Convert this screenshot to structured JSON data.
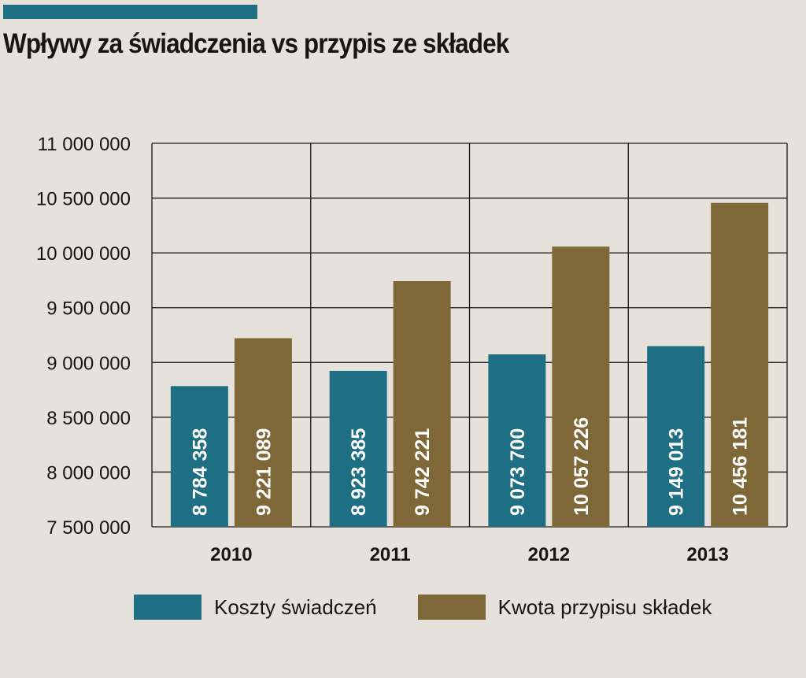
{
  "colors": {
    "accent": "#1e6f84",
    "series_1": "#1e6f84",
    "series_2": "#7f6838",
    "grid": "#1a1510",
    "background": "#e7e1db"
  },
  "chart_data": {
    "type": "bar",
    "title": "Wpływy za świadczenia vs przypis ze składek",
    "xlabel": "",
    "ylabel": "",
    "categories": [
      "2010",
      "2011",
      "2012",
      "2013"
    ],
    "series": [
      {
        "name": "Koszty świadczeń",
        "values": [
          8784358,
          8923385,
          9073700,
          9149013
        ],
        "labels": [
          "8 784 358",
          "8 923 385",
          "9 073 700",
          "9 149 013"
        ]
      },
      {
        "name": "Kwota przypisu składek",
        "values": [
          9221089,
          9742221,
          10057226,
          10456181
        ],
        "labels": [
          "9 221 089",
          "9 742 221",
          "10 057 226",
          "10 456 181"
        ]
      }
    ],
    "ylim": [
      7500000,
      11000000
    ],
    "yticks": [
      7500000,
      8000000,
      8500000,
      9000000,
      9500000,
      10000000,
      10500000,
      11000000
    ],
    "ytick_labels": [
      "7 500 000",
      "8 000 000",
      "8 500 000",
      "9 000 000",
      "9 500 000",
      "10 000 000",
      "10 500 000",
      "11 000 000"
    ],
    "grid": true,
    "legend_position": "bottom"
  }
}
